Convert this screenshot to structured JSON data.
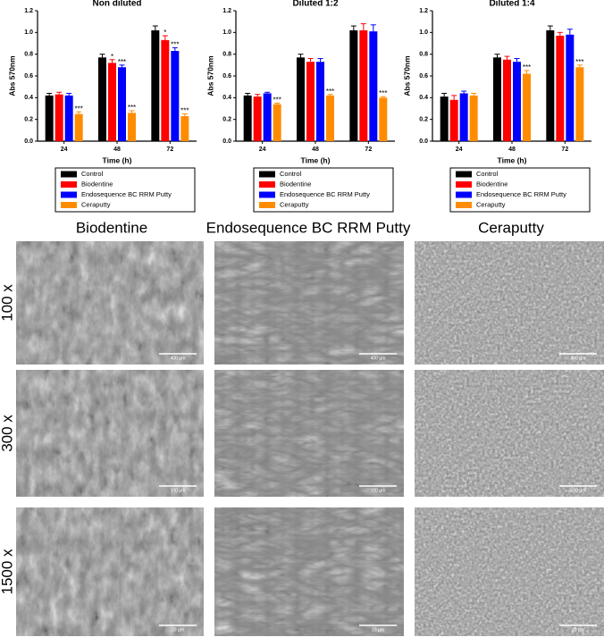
{
  "chart_data": [
    {
      "type": "bar",
      "title": "Non diluted",
      "x_label": "Time (h)",
      "y_label": "Abs 570nm",
      "categories": [
        "24",
        "48",
        "72"
      ],
      "ylim": [
        0,
        1.2
      ],
      "yticks": [
        {
          "value": 0,
          "label": "0.0"
        },
        0.2,
        0.4,
        0.6,
        0.8,
        {
          "value": 1,
          "label": "1.0"
        },
        1.2
      ],
      "series": [
        {
          "name": "Control",
          "color": "#000000",
          "values": [
            0.42,
            0.77,
            1.02
          ],
          "errors": [
            0.02,
            0.03,
            0.04
          ]
        },
        {
          "name": "Biodentine",
          "color": "#ff0000",
          "values": [
            0.43,
            0.72,
            0.93
          ],
          "errors": [
            0.02,
            0.03,
            0.04
          ],
          "annotations": [
            null,
            "*",
            "*"
          ]
        },
        {
          "name": "Endosequence BC RRM Putty",
          "color": "#0000ff",
          "values": [
            0.42,
            0.68,
            0.83
          ],
          "errors": [
            0.02,
            0.02,
            0.03
          ],
          "annotations": [
            null,
            "***",
            "***"
          ]
        },
        {
          "name": "Ceraputty",
          "color": "#ff8c00",
          "values": [
            0.25,
            0.26,
            0.23
          ],
          "errors": [
            0.02,
            0.02,
            0.02
          ],
          "annotations": [
            "***",
            "***",
            "***"
          ]
        }
      ]
    },
    {
      "type": "bar",
      "title": "Diluted 1:2",
      "x_label": "Time (h)",
      "y_label": "Abs 570nm",
      "categories": [
        "24",
        "48",
        "72"
      ],
      "ylim": [
        0,
        1.2
      ],
      "yticks": [
        {
          "value": 0,
          "label": "0.0"
        },
        0.2,
        0.4,
        0.6,
        0.8,
        {
          "value": 1,
          "label": "1.0"
        },
        1.2
      ],
      "series": [
        {
          "name": "Control",
          "color": "#000000",
          "values": [
            0.42,
            0.77,
            1.02
          ],
          "errors": [
            0.02,
            0.03,
            0.04
          ]
        },
        {
          "name": "Biodentine",
          "color": "#ff0000",
          "values": [
            0.41,
            0.73,
            1.02
          ],
          "errors": [
            0.02,
            0.03,
            0.06
          ]
        },
        {
          "name": "Endosequence BC RRM Putty",
          "color": "#0000ff",
          "values": [
            0.44,
            0.73,
            1.01
          ],
          "errors": [
            0.01,
            0.03,
            0.06
          ]
        },
        {
          "name": "Ceraputty",
          "color": "#ff8c00",
          "values": [
            0.34,
            0.42,
            0.4
          ],
          "errors": [
            0.01,
            0.01,
            0.01
          ],
          "annotations": [
            "***",
            "***",
            "***"
          ]
        }
      ]
    },
    {
      "type": "bar",
      "title": "Diluted 1:4",
      "x_label": "Time (h)",
      "y_label": "Abs 570nm",
      "categories": [
        "24",
        "48",
        "72"
      ],
      "ylim": [
        0,
        1.2
      ],
      "yticks": [
        {
          "value": 0,
          "label": "0.0"
        },
        0.2,
        0.4,
        0.6,
        0.8,
        {
          "value": 1,
          "label": "1.0"
        },
        1.2
      ],
      "series": [
        {
          "name": "Control",
          "color": "#000000",
          "values": [
            0.41,
            0.77,
            1.02
          ],
          "errors": [
            0.03,
            0.03,
            0.04
          ]
        },
        {
          "name": "Biodentine",
          "color": "#ff0000",
          "values": [
            0.38,
            0.75,
            0.97
          ],
          "errors": [
            0.04,
            0.03,
            0.03
          ]
        },
        {
          "name": "Endosequence BC RRM Putty",
          "color": "#0000ff",
          "values": [
            0.44,
            0.73,
            0.98
          ],
          "errors": [
            0.02,
            0.03,
            0.05
          ]
        },
        {
          "name": "Ceraputty",
          "color": "#ff8c00",
          "values": [
            0.42,
            0.62,
            0.68
          ],
          "errors": [
            0.02,
            0.03,
            0.02
          ],
          "annotations": [
            null,
            "***",
            "***"
          ]
        }
      ]
    }
  ],
  "sem_panel": {
    "columns": [
      "Biodentine",
      "Endosequence BC RRM Putty",
      "Ceraputty"
    ],
    "rows": [
      {
        "label": "100 x",
        "scale_bar": "400 µm"
      },
      {
        "label": "300 x",
        "scale_bar": "100 µm"
      },
      {
        "label": "1500 x",
        "scale_bar": "20 µm"
      }
    ]
  }
}
